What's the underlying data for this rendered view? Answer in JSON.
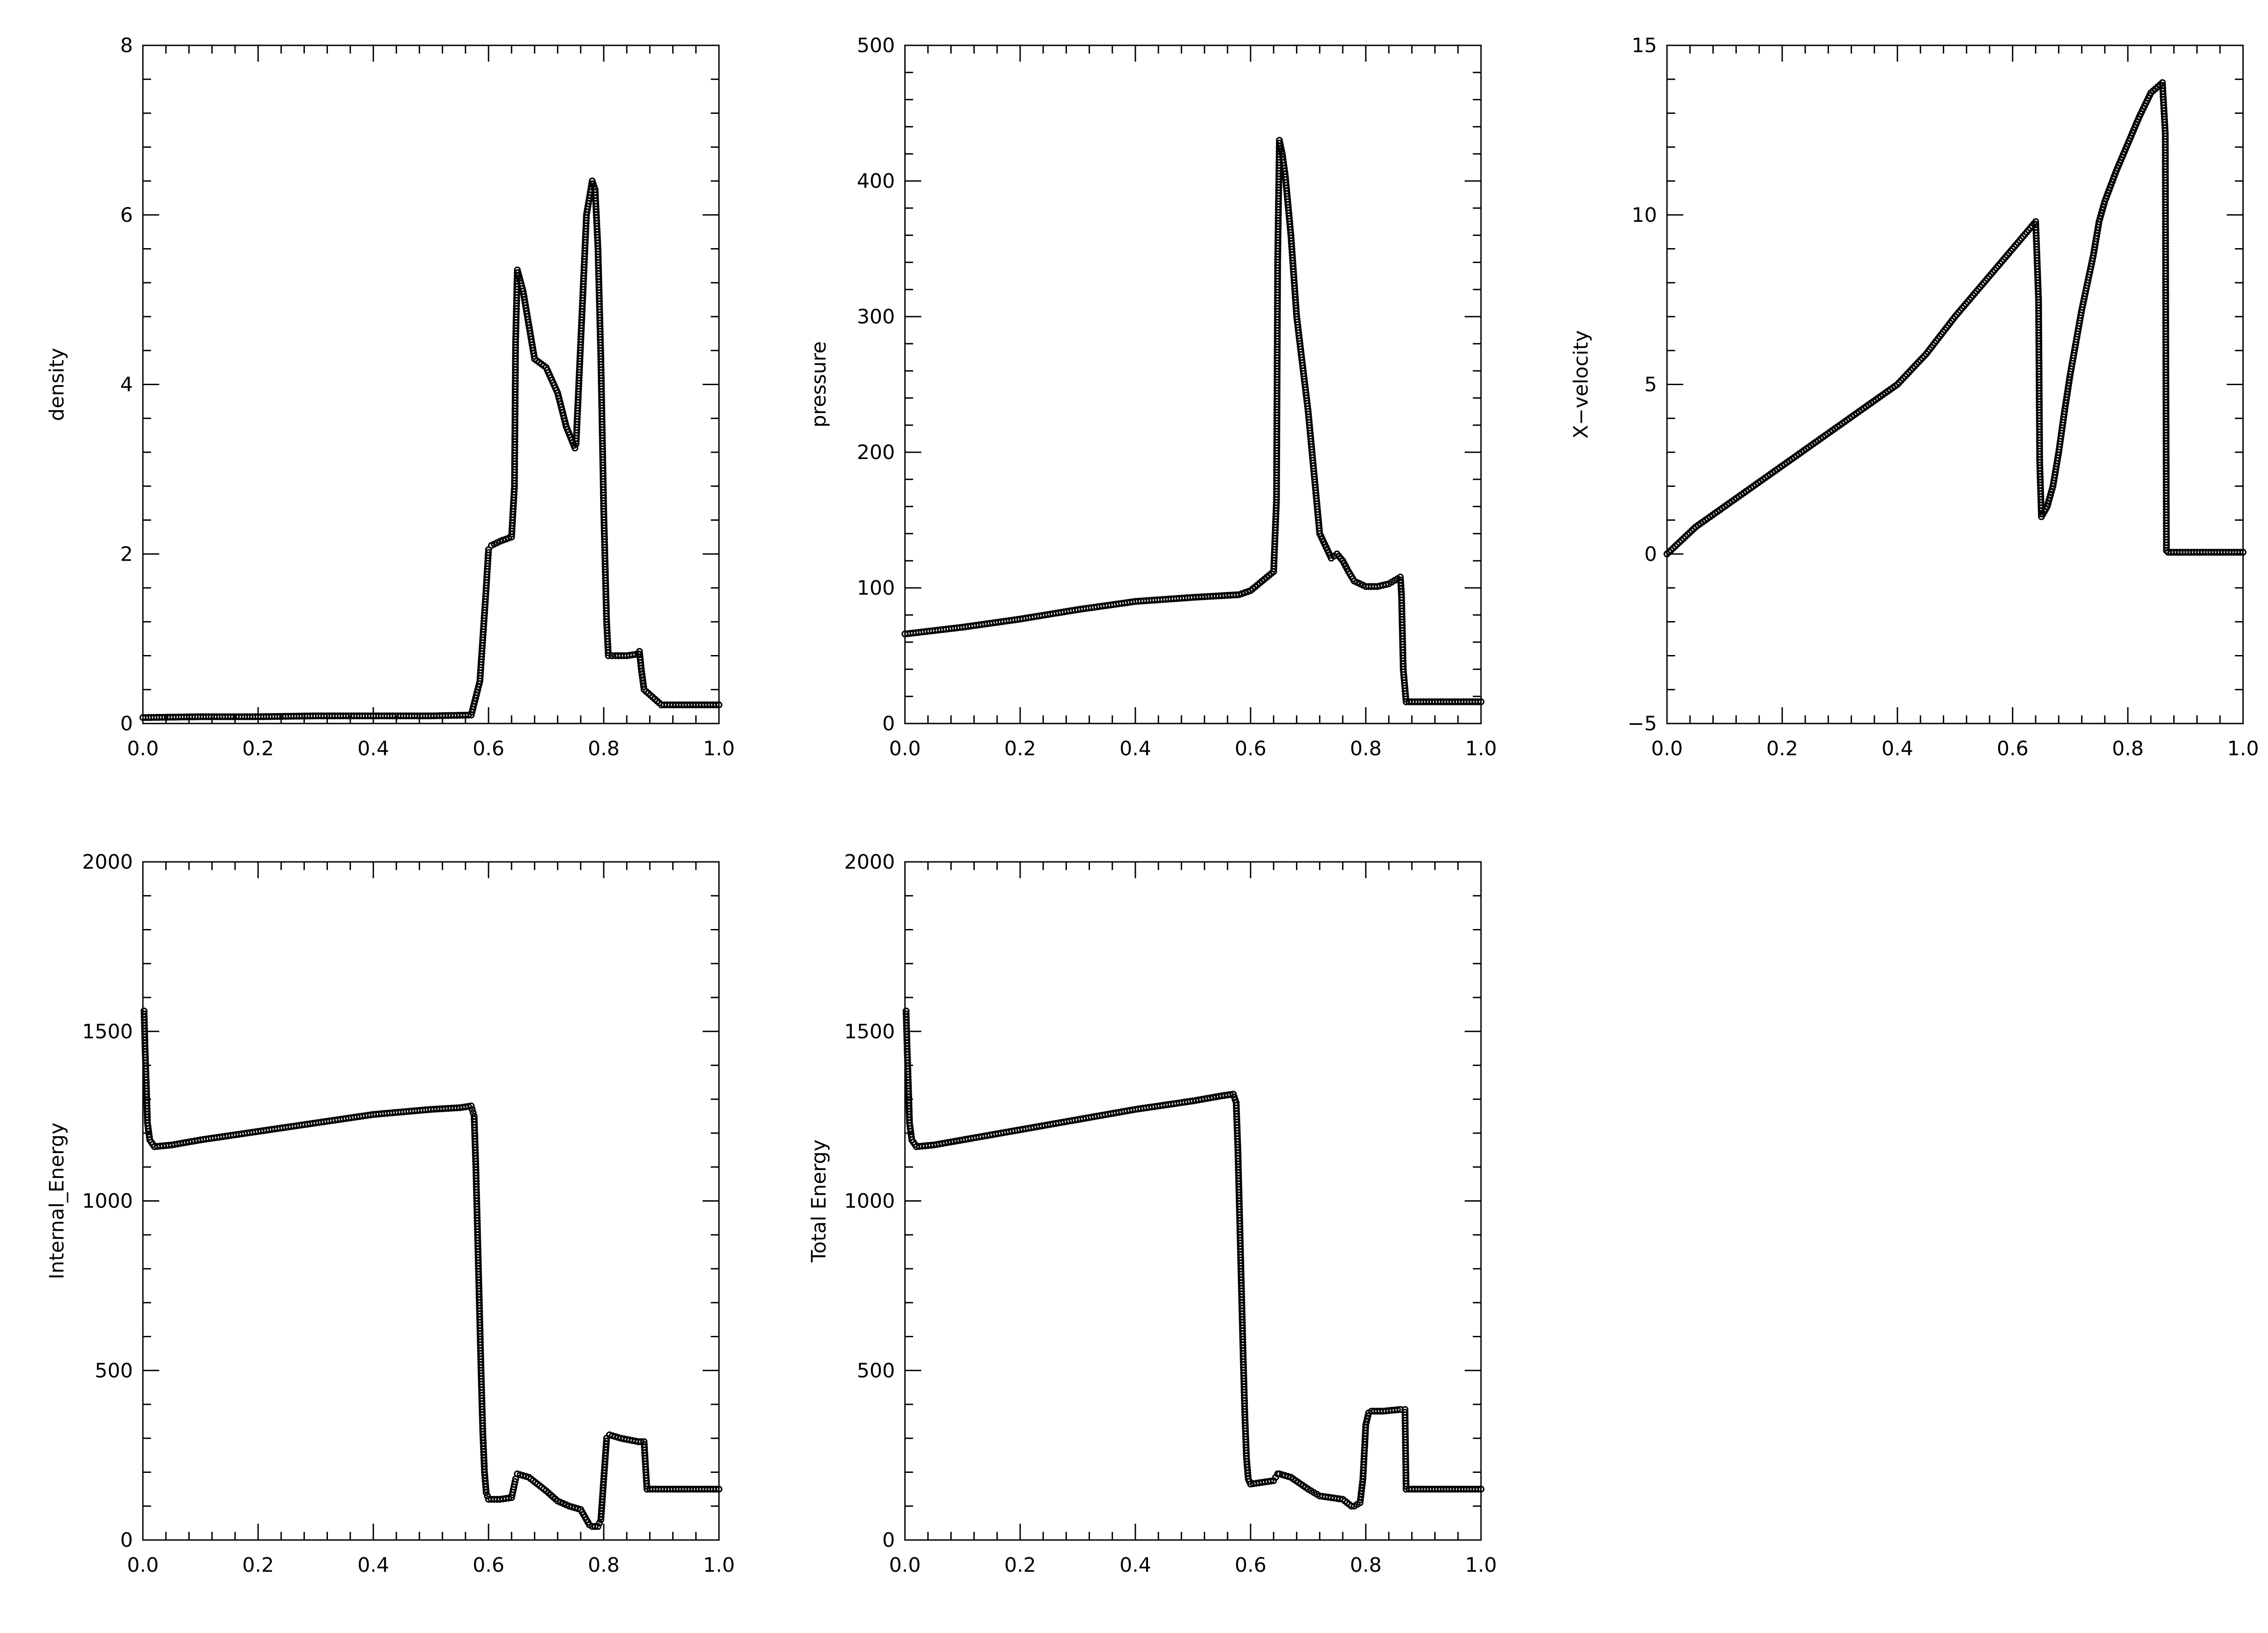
{
  "chart_data": [
    {
      "type": "scatter",
      "ylabel": "density",
      "xlim": [
        0,
        1
      ],
      "ylim": [
        0,
        8
      ],
      "xticks": [
        0.0,
        0.2,
        0.4,
        0.6,
        0.8,
        1.0
      ],
      "xtick_labels": [
        "0.0",
        "0.2",
        "0.4",
        "0.6",
        "0.8",
        "1.0"
      ],
      "yticks": [
        0,
        2,
        4,
        6,
        8
      ],
      "ytick_labels": [
        "0",
        "2",
        "4",
        "6",
        "8"
      ],
      "series": [
        {
          "x": [
            0,
            0.1,
            0.2,
            0.3,
            0.4,
            0.5,
            0.57,
            0.585,
            0.595,
            0.6,
            0.605,
            0.62,
            0.64,
            0.645,
            0.647,
            0.65,
            0.66,
            0.67,
            0.68,
            0.7,
            0.72,
            0.735,
            0.75,
            0.752,
            0.76,
            0.77,
            0.78,
            0.785,
            0.79,
            0.795,
            0.8,
            0.805,
            0.808,
            0.82,
            0.84,
            0.86,
            0.862,
            0.865,
            0.87,
            0.9,
            0.95,
            1.0
          ],
          "y": [
            0.07,
            0.08,
            0.08,
            0.09,
            0.09,
            0.09,
            0.1,
            0.5,
            1.5,
            2.05,
            2.1,
            2.15,
            2.2,
            2.8,
            4.5,
            5.35,
            5.1,
            4.7,
            4.3,
            4.2,
            3.9,
            3.5,
            3.25,
            3.3,
            4.5,
            6.0,
            6.4,
            6.3,
            5.6,
            4.3,
            2.5,
            1.2,
            0.8,
            0.8,
            0.8,
            0.82,
            0.85,
            0.65,
            0.4,
            0.22,
            0.22,
            0.22
          ]
        }
      ]
    },
    {
      "type": "scatter",
      "ylabel": "pressure",
      "xlim": [
        0,
        1
      ],
      "ylim": [
        0,
        500
      ],
      "xticks": [
        0.0,
        0.2,
        0.4,
        0.6,
        0.8,
        1.0
      ],
      "xtick_labels": [
        "0.0",
        "0.2",
        "0.4",
        "0.6",
        "0.8",
        "1.0"
      ],
      "yticks": [
        0,
        100,
        200,
        300,
        400,
        500
      ],
      "ytick_labels": [
        "0",
        "100",
        "200",
        "300",
        "400",
        "500"
      ],
      "series": [
        {
          "x": [
            0,
            0.1,
            0.2,
            0.3,
            0.4,
            0.5,
            0.58,
            0.6,
            0.62,
            0.64,
            0.645,
            0.647,
            0.65,
            0.655,
            0.66,
            0.67,
            0.68,
            0.7,
            0.72,
            0.74,
            0.75,
            0.76,
            0.77,
            0.78,
            0.8,
            0.82,
            0.84,
            0.86,
            0.862,
            0.865,
            0.87,
            0.9,
            0.95,
            1.0
          ],
          "y": [
            66,
            71,
            77,
            84,
            90,
            93,
            95,
            98,
            105,
            112,
            165,
            340,
            430,
            420,
            405,
            360,
            300,
            230,
            140,
            122,
            125,
            120,
            112,
            105,
            101,
            101,
            103,
            108,
            95,
            40,
            16,
            16,
            16,
            16
          ]
        }
      ]
    },
    {
      "type": "scatter",
      "ylabel": "X−velocity",
      "xlim": [
        0,
        1
      ],
      "ylim": [
        -5,
        15
      ],
      "xticks": [
        0.0,
        0.2,
        0.4,
        0.6,
        0.8,
        1.0
      ],
      "xtick_labels": [
        "0.0",
        "0.2",
        "0.4",
        "0.6",
        "0.8",
        "1.0"
      ],
      "yticks": [
        -5,
        0,
        5,
        10,
        15
      ],
      "ytick_labels": [
        "−5",
        "0",
        "5",
        "10",
        "15"
      ],
      "series": [
        {
          "x": [
            0,
            0.05,
            0.1,
            0.15,
            0.2,
            0.25,
            0.3,
            0.35,
            0.4,
            0.45,
            0.5,
            0.55,
            0.6,
            0.64,
            0.645,
            0.647,
            0.65,
            0.66,
            0.67,
            0.68,
            0.69,
            0.7,
            0.72,
            0.74,
            0.75,
            0.76,
            0.78,
            0.8,
            0.82,
            0.84,
            0.86,
            0.865,
            0.866,
            0.867,
            0.87,
            0.9,
            0.95,
            1.0
          ],
          "y": [
            0.0,
            0.8,
            1.4,
            2.0,
            2.6,
            3.2,
            3.8,
            4.4,
            5.0,
            5.9,
            7.0,
            8.0,
            9.0,
            9.8,
            7.5,
            2.7,
            1.1,
            1.4,
            2.0,
            3.0,
            4.2,
            5.3,
            7.2,
            8.8,
            9.8,
            10.4,
            11.3,
            12.1,
            12.9,
            13.6,
            13.9,
            12.4,
            5.6,
            0.1,
            0.05,
            0.05,
            0.05,
            0.05
          ]
        }
      ]
    },
    {
      "type": "scatter",
      "ylabel": "Internal_Energy",
      "xlim": [
        0,
        1
      ],
      "ylim": [
        0,
        2000
      ],
      "xticks": [
        0.0,
        0.2,
        0.4,
        0.6,
        0.8,
        1.0
      ],
      "xtick_labels": [
        "0.0",
        "0.2",
        "0.4",
        "0.6",
        "0.8",
        "1.0"
      ],
      "yticks": [
        0,
        500,
        1000,
        1500,
        2000
      ],
      "ytick_labels": [
        "0",
        "500",
        "1000",
        "1500",
        "2000"
      ],
      "series": [
        {
          "x": [
            0.002,
            0.004,
            0.006,
            0.008,
            0.012,
            0.02,
            0.05,
            0.1,
            0.2,
            0.3,
            0.4,
            0.5,
            0.55,
            0.57,
            0.575,
            0.578,
            0.581,
            0.584,
            0.587,
            0.59,
            0.593,
            0.596,
            0.6,
            0.62,
            0.64,
            0.647,
            0.65,
            0.67,
            0.7,
            0.72,
            0.74,
            0.76,
            0.775,
            0.78,
            0.79,
            0.795,
            0.8,
            0.805,
            0.81,
            0.83,
            0.86,
            0.87,
            0.875,
            0.9,
            0.95,
            1.0
          ],
          "y": [
            1560,
            1440,
            1340,
            1230,
            1180,
            1160,
            1165,
            1180,
            1205,
            1230,
            1255,
            1270,
            1275,
            1280,
            1250,
            1100,
            900,
            700,
            500,
            320,
            200,
            140,
            120,
            120,
            125,
            180,
            195,
            185,
            145,
            115,
            100,
            90,
            45,
            40,
            40,
            60,
            180,
            300,
            310,
            300,
            290,
            290,
            150,
            150,
            150,
            150
          ]
        }
      ]
    },
    {
      "type": "scatter",
      "ylabel": "Total Energy",
      "xlim": [
        0,
        1
      ],
      "ylim": [
        0,
        2000
      ],
      "xticks": [
        0.0,
        0.2,
        0.4,
        0.6,
        0.8,
        1.0
      ],
      "xtick_labels": [
        "0.0",
        "0.2",
        "0.4",
        "0.6",
        "0.8",
        "1.0"
      ],
      "yticks": [
        0,
        500,
        1000,
        1500,
        2000
      ],
      "ytick_labels": [
        "0",
        "500",
        "1000",
        "1500",
        "2000"
      ],
      "series": [
        {
          "x": [
            0.002,
            0.004,
            0.006,
            0.008,
            0.012,
            0.02,
            0.05,
            0.1,
            0.2,
            0.3,
            0.4,
            0.5,
            0.55,
            0.57,
            0.575,
            0.578,
            0.581,
            0.584,
            0.587,
            0.59,
            0.593,
            0.596,
            0.6,
            0.62,
            0.64,
            0.647,
            0.65,
            0.67,
            0.7,
            0.72,
            0.74,
            0.76,
            0.775,
            0.78,
            0.79,
            0.795,
            0.8,
            0.805,
            0.81,
            0.83,
            0.86,
            0.868,
            0.87,
            0.9,
            0.95,
            1.0
          ],
          "y": [
            1560,
            1440,
            1340,
            1230,
            1180,
            1160,
            1165,
            1180,
            1210,
            1240,
            1270,
            1295,
            1310,
            1315,
            1290,
            1150,
            950,
            750,
            550,
            370,
            240,
            180,
            165,
            170,
            175,
            195,
            195,
            185,
            150,
            130,
            125,
            120,
            100,
            100,
            110,
            180,
            340,
            375,
            380,
            380,
            385,
            385,
            150,
            150,
            150,
            150
          ]
        }
      ]
    }
  ]
}
